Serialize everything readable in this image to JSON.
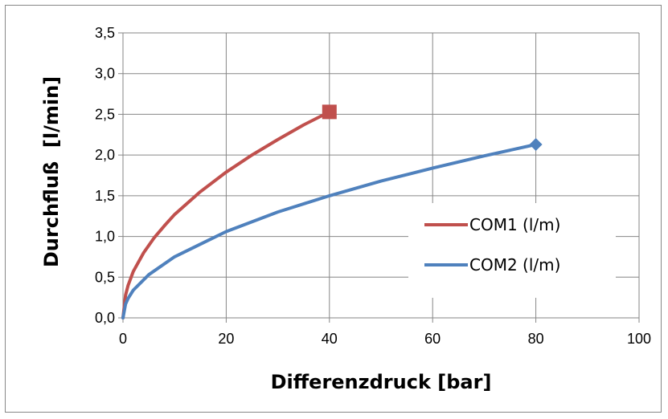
{
  "chart_data": {
    "type": "line",
    "title": "",
    "xlabel": "Differenzdruck [bar]",
    "ylabel": "Durchfluß  [l/min]",
    "xlim": [
      0,
      100
    ],
    "ylim": [
      0,
      3.5
    ],
    "x_ticks": [
      "0",
      "20",
      "40",
      "60",
      "80",
      "100"
    ],
    "y_ticks": [
      "0,0",
      "0,5",
      "1,0",
      "1,5",
      "2,0",
      "2,5",
      "3,0",
      "3,5"
    ],
    "grid": true,
    "legend_position": "right",
    "series": [
      {
        "name": "COM1 (l/m)",
        "color": "#C0504D",
        "end_marker": "square",
        "x": [
          0,
          0.5,
          1,
          2,
          4,
          6,
          8,
          10,
          15,
          20,
          25,
          30,
          35,
          40
        ],
        "y": [
          0,
          0.28,
          0.4,
          0.57,
          0.8,
          0.98,
          1.13,
          1.27,
          1.55,
          1.79,
          2.0,
          2.19,
          2.37,
          2.53
        ]
      },
      {
        "name": "COM2 (l/m)",
        "color": "#4F81BD",
        "end_marker": "diamond",
        "x": [
          0,
          0.5,
          1,
          2,
          5,
          10,
          20,
          30,
          40,
          50,
          60,
          70,
          80
        ],
        "y": [
          0,
          0.17,
          0.24,
          0.34,
          0.53,
          0.75,
          1.06,
          1.3,
          1.5,
          1.68,
          1.84,
          1.99,
          2.13
        ]
      }
    ]
  }
}
